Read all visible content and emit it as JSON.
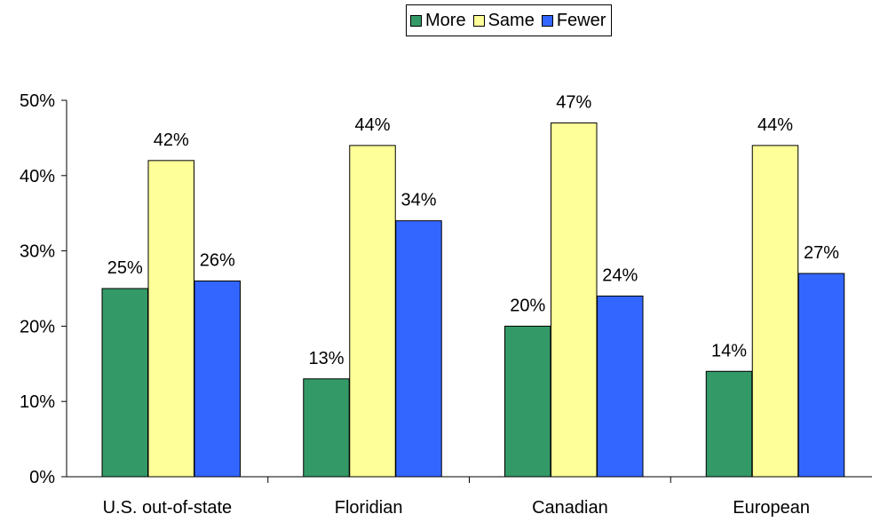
{
  "chart_data": {
    "type": "bar",
    "categories": [
      "U.S. out-of-state",
      "Floridian",
      "Canadian",
      "European"
    ],
    "series": [
      {
        "name": "More",
        "values": [
          25,
          13,
          20,
          14
        ],
        "color": "#339966"
      },
      {
        "name": "Same",
        "values": [
          42,
          44,
          47,
          44
        ],
        "color": "#FFFF99"
      },
      {
        "name": "Fewer",
        "values": [
          26,
          34,
          24,
          27
        ],
        "color": "#3366FF"
      }
    ],
    "data_labels": [
      [
        "25%",
        "13%",
        "20%",
        "14%"
      ],
      [
        "42%",
        "44%",
        "47%",
        "44%"
      ],
      [
        "26%",
        "34%",
        "24%",
        "27%"
      ]
    ],
    "yticks": [
      0,
      10,
      20,
      30,
      40,
      50
    ],
    "ytick_labels": [
      "0%",
      "10%",
      "20%",
      "30%",
      "40%",
      "50%"
    ],
    "ylim": [
      0,
      50
    ],
    "title": "",
    "xlabel": "",
    "ylabel": "",
    "grid": false,
    "legend_position": "top-right"
  }
}
